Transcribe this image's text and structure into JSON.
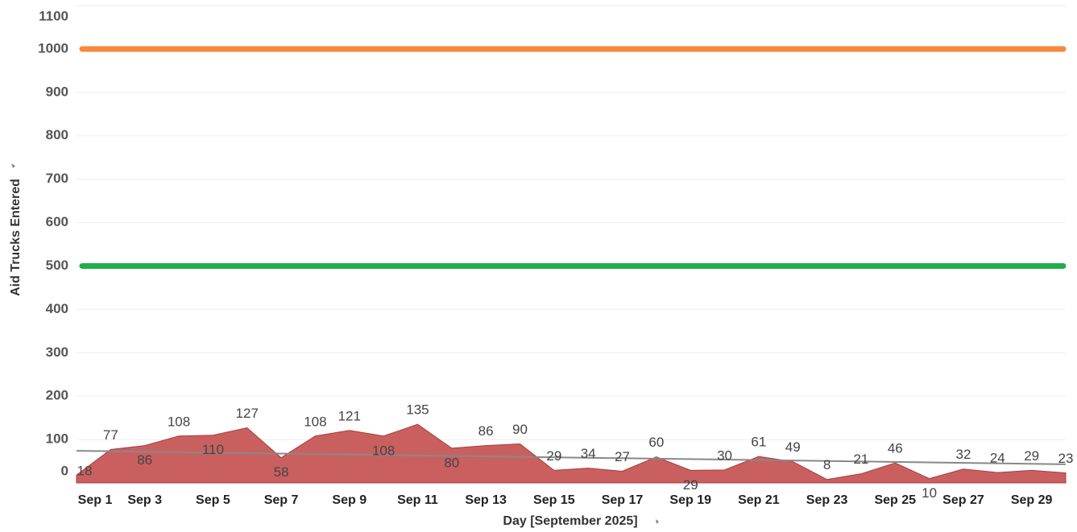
{
  "chart_data": {
    "type": "area",
    "y_label": "Aid Trucks Entered",
    "x_label": "Day [September 2025]",
    "categories": [
      "Sep 1",
      null,
      "Sep 3",
      null,
      "Sep 5",
      null,
      "Sep 7",
      null,
      "Sep 9",
      null,
      "Sep 11",
      null,
      "Sep 13",
      null,
      "Sep 15",
      null,
      "Sep 17",
      null,
      "Sep 19",
      null,
      "Sep 21",
      null,
      "Sep 23",
      null,
      "Sep 25",
      null,
      "Sep 27",
      null,
      "Sep 29",
      null
    ],
    "values": [
      18,
      77,
      86,
      108,
      110,
      127,
      58,
      108,
      121,
      108,
      135,
      80,
      86,
      90,
      29,
      34,
      27,
      60,
      29,
      30,
      61,
      49,
      8,
      21,
      46,
      10,
      32,
      24,
      29,
      23
    ],
    "color": "#c9605f",
    "ylim": [
      0,
      1100
    ],
    "yticks": [
      0,
      100,
      200,
      300,
      400,
      500,
      600,
      700,
      800,
      900,
      1000,
      1100
    ],
    "grid": true,
    "reference_lines": [
      {
        "value": 1000,
        "color": "#f5893c"
      },
      {
        "value": 500,
        "color": "#1fae4b"
      }
    ],
    "trendline": {
      "values": [
        74,
        43
      ],
      "color": "#888888"
    }
  }
}
